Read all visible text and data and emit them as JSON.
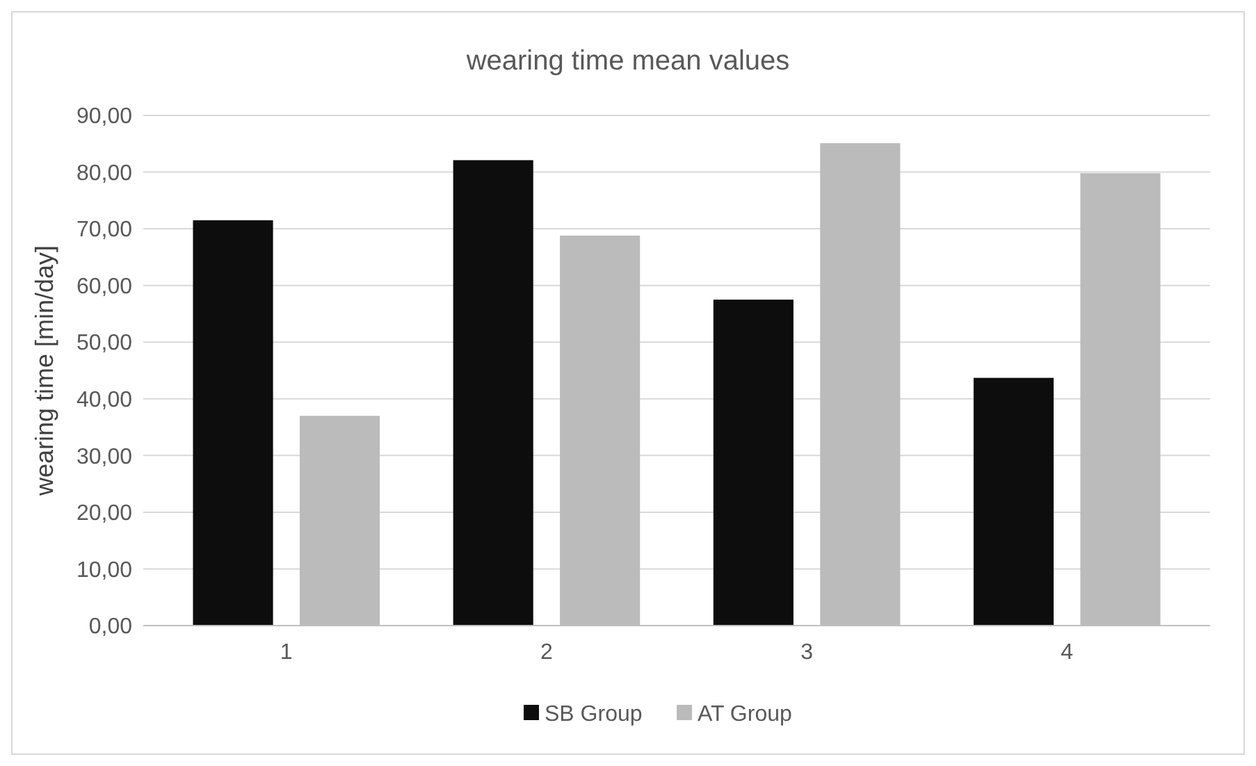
{
  "chart_data": {
    "type": "bar",
    "title": "wearing time mean values",
    "ylabel": "wearing time [min/day]",
    "categories": [
      "1",
      "2",
      "3",
      "4"
    ],
    "series": [
      {
        "name": "SB Group",
        "color": "#0d0d0d",
        "values": [
          71.5,
          82.1,
          57.5,
          43.7
        ]
      },
      {
        "name": "AT Group",
        "color": "#bbbbbb",
        "values": [
          37.0,
          68.8,
          85.1,
          79.8
        ]
      }
    ],
    "ylim": [
      0,
      90
    ],
    "yticks": [
      {
        "value": 0,
        "label": "0,00"
      },
      {
        "value": 10,
        "label": "10,00"
      },
      {
        "value": 20,
        "label": "20,00"
      },
      {
        "value": 30,
        "label": "30,00"
      },
      {
        "value": 40,
        "label": "40,00"
      },
      {
        "value": 50,
        "label": "50,00"
      },
      {
        "value": 60,
        "label": "60,00"
      },
      {
        "value": 70,
        "label": "70,00"
      },
      {
        "value": 80,
        "label": "80,00"
      },
      {
        "value": 90,
        "label": "90,00"
      }
    ],
    "grid": "y",
    "legend": "bottom"
  }
}
